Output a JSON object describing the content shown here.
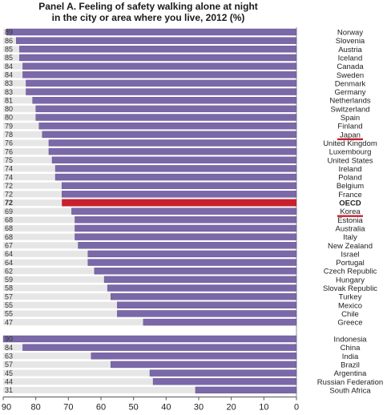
{
  "title": {
    "line1": "Panel A. Feeling of safety walking alone at night",
    "line2": "in the city or area where you live, 2012 (%)"
  },
  "chart_data": {
    "type": "bar",
    "orientation": "horizontal",
    "x_axis_reversed": true,
    "xlim": [
      0,
      90
    ],
    "x_ticks": [
      90,
      80,
      70,
      60,
      50,
      40,
      30,
      20,
      10,
      0
    ],
    "title": "Panel A. Feeling of safety walking alone at night in the city or area where you live, 2012 (%)",
    "xlabel": "",
    "ylabel": "",
    "groups": [
      {
        "categories": [
          "Norway",
          "Slovenia",
          "Austria",
          "Iceland",
          "Canada",
          "Sweden",
          "Denmark",
          "Germany",
          "Netherlands",
          "Switzerland",
          "Spain",
          "Finland",
          "Japan",
          "United Kingdom",
          "Luxembourg",
          "United States",
          "Ireland",
          "Poland",
          "Belgium",
          "France",
          "OECD",
          "Korea",
          "Estonia",
          "Australia",
          "Italy",
          "New Zealand",
          "Israel",
          "Portugal",
          "Czech Republic",
          "Hungary",
          "Slovak Republic",
          "Turkey",
          "Mexico",
          "Chile",
          "Greece"
        ],
        "values": [
          89,
          86,
          85,
          85,
          84,
          84,
          83,
          83,
          81,
          80,
          80,
          79,
          78,
          76,
          76,
          75,
          74,
          74,
          72,
          72,
          72,
          69,
          68,
          68,
          68,
          67,
          64,
          64,
          62,
          59,
          58,
          57,
          55,
          55,
          47
        ],
        "highlight": "OECD",
        "underlined": [
          "Japan",
          "Korea"
        ]
      },
      {
        "categories": [
          "Indonesia",
          "China",
          "India",
          "Brazil",
          "Argentina",
          "Russian Federation",
          "South Africa"
        ],
        "values": [
          90,
          84,
          63,
          57,
          45,
          44,
          31
        ]
      }
    ],
    "colors": {
      "bar": "#7b68a8",
      "bar_stroke": "#5f4f8e",
      "highlight": "#c8202f",
      "underline": "#c8202f",
      "track": "#e6e6e6",
      "label_text": "#222222",
      "value_text": "#333333"
    }
  }
}
